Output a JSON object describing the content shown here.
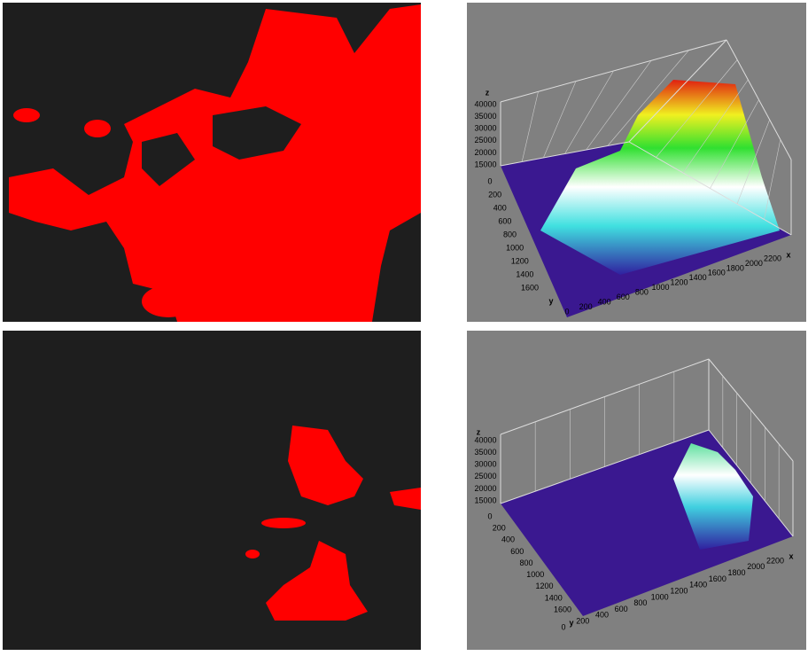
{
  "plots": [
    {
      "z_label": "z",
      "z_ticks": [
        40000,
        35000,
        30000,
        25000,
        20000,
        15000
      ],
      "y_label": "y",
      "y_ticks": [
        0,
        200,
        400,
        600,
        800,
        1000,
        1200,
        1400,
        1600
      ],
      "x_label": "x",
      "x_ticks": [
        0,
        200,
        400,
        600,
        800,
        1000,
        1200,
        1400,
        1600,
        1800,
        2000,
        2200
      ]
    },
    {
      "z_label": "z",
      "z_ticks": [
        40000,
        35000,
        30000,
        25000,
        20000,
        15000
      ],
      "y_label": "y",
      "y_ticks": [
        0,
        200,
        400,
        600,
        800,
        1000,
        1200,
        1400,
        1600
      ],
      "x_label": "x",
      "x_ticks": [
        0,
        200,
        400,
        600,
        800,
        1000,
        1200,
        1400,
        1600,
        1800,
        2000,
        2200
      ]
    }
  ]
}
